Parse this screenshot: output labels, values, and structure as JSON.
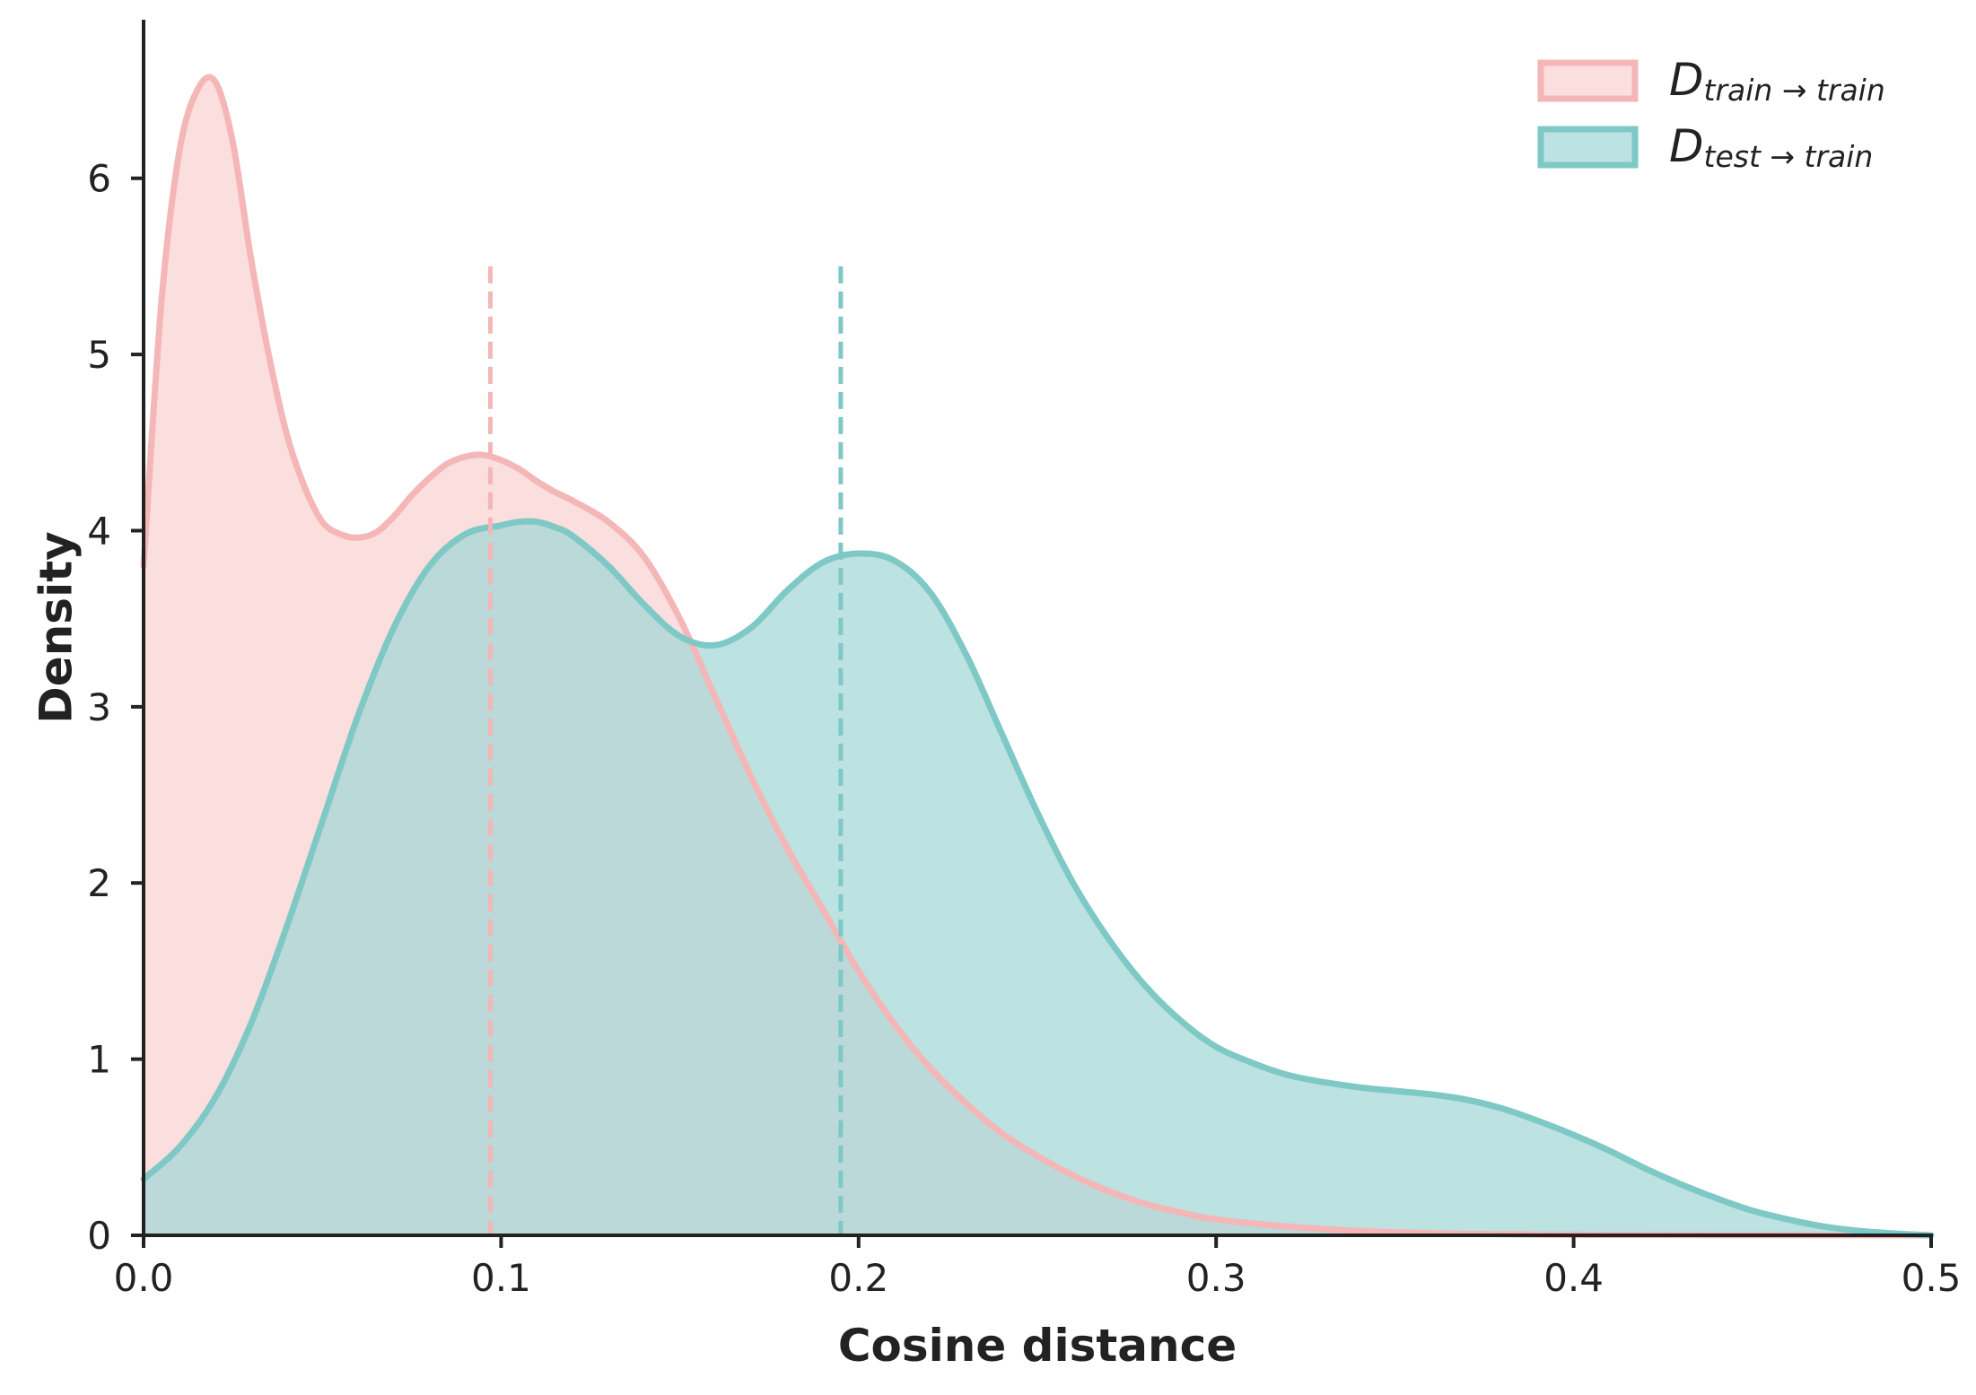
{
  "chart_data": {
    "type": "area",
    "title": "",
    "xlabel": "Cosine distance",
    "ylabel": "Density",
    "xlim": [
      0,
      0.5
    ],
    "ylim": [
      0,
      6.9
    ],
    "x_ticks": [
      0.0,
      0.1,
      0.2,
      0.3,
      0.4,
      0.5
    ],
    "x_tick_labels": [
      "0.0",
      "0.1",
      "0.2",
      "0.3",
      "0.4",
      "0.5"
    ],
    "y_ticks": [
      0,
      1,
      2,
      3,
      4,
      5,
      6
    ],
    "y_tick_labels": [
      "0",
      "1",
      "2",
      "3",
      "4",
      "5",
      "6"
    ],
    "grid": false,
    "legend_position": "top-right",
    "series": [
      {
        "name": "train→train",
        "legend_main": "D",
        "legend_sub": "train → train",
        "line_color": "#f4b6b6",
        "fill_color": "#f9d3d3",
        "mean": 0.097,
        "x": [
          0.0,
          0.005,
          0.01,
          0.015,
          0.02,
          0.025,
          0.03,
          0.035,
          0.04,
          0.045,
          0.05,
          0.055,
          0.06,
          0.065,
          0.07,
          0.075,
          0.08,
          0.085,
          0.09,
          0.095,
          0.1,
          0.105,
          0.11,
          0.115,
          0.12,
          0.13,
          0.14,
          0.15,
          0.16,
          0.17,
          0.18,
          0.19,
          0.2,
          0.21,
          0.22,
          0.23,
          0.24,
          0.25,
          0.26,
          0.27,
          0.28,
          0.29,
          0.3,
          0.32,
          0.34,
          0.36,
          0.38,
          0.4,
          0.42,
          0.45,
          0.5
        ],
        "y": [
          3.8,
          5.3,
          6.15,
          6.5,
          6.55,
          6.2,
          5.55,
          5.0,
          4.55,
          4.25,
          4.05,
          3.98,
          3.96,
          3.99,
          4.08,
          4.2,
          4.3,
          4.38,
          4.42,
          4.43,
          4.4,
          4.35,
          4.28,
          4.22,
          4.17,
          4.05,
          3.85,
          3.5,
          3.05,
          2.6,
          2.2,
          1.85,
          1.5,
          1.2,
          0.95,
          0.75,
          0.58,
          0.45,
          0.34,
          0.25,
          0.18,
          0.13,
          0.09,
          0.05,
          0.025,
          0.012,
          0.006,
          0.003,
          0.002,
          0.001,
          0.0
        ]
      },
      {
        "name": "test→train",
        "legend_main": "D",
        "legend_sub": "test → train",
        "line_color": "#7ec8c6",
        "fill_color": "#a2d7d5",
        "mean": 0.195,
        "x": [
          0.0,
          0.01,
          0.02,
          0.03,
          0.04,
          0.05,
          0.06,
          0.07,
          0.08,
          0.09,
          0.1,
          0.105,
          0.11,
          0.115,
          0.12,
          0.13,
          0.14,
          0.15,
          0.16,
          0.17,
          0.18,
          0.19,
          0.2,
          0.21,
          0.22,
          0.23,
          0.24,
          0.25,
          0.26,
          0.27,
          0.28,
          0.29,
          0.3,
          0.31,
          0.32,
          0.33,
          0.34,
          0.35,
          0.36,
          0.37,
          0.38,
          0.39,
          0.4,
          0.41,
          0.42,
          0.43,
          0.44,
          0.45,
          0.46,
          0.47,
          0.48,
          0.49,
          0.5
        ],
        "y": [
          0.32,
          0.5,
          0.78,
          1.2,
          1.75,
          2.35,
          2.95,
          3.45,
          3.8,
          3.98,
          4.03,
          4.05,
          4.05,
          4.02,
          3.97,
          3.8,
          3.58,
          3.4,
          3.35,
          3.45,
          3.66,
          3.82,
          3.87,
          3.83,
          3.65,
          3.3,
          2.85,
          2.4,
          2.0,
          1.68,
          1.42,
          1.22,
          1.07,
          0.98,
          0.91,
          0.87,
          0.84,
          0.82,
          0.8,
          0.77,
          0.72,
          0.65,
          0.57,
          0.48,
          0.38,
          0.29,
          0.21,
          0.14,
          0.09,
          0.05,
          0.025,
          0.01,
          0.0
        ]
      }
    ]
  }
}
